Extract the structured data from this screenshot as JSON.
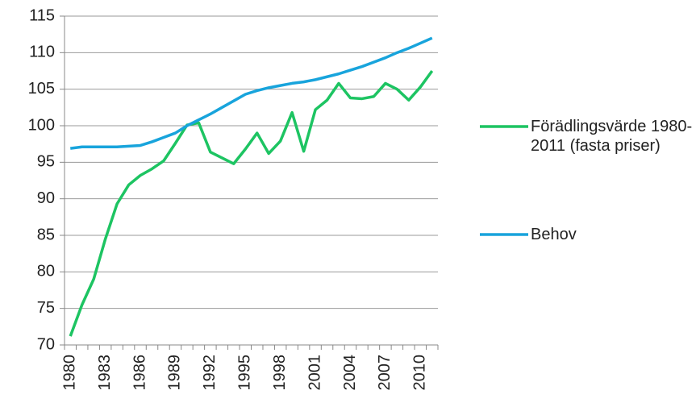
{
  "chart_data": {
    "type": "line",
    "categories": [
      "1980",
      null,
      null,
      "1983",
      null,
      null,
      "1986",
      null,
      null,
      "1989",
      null,
      null,
      "1992",
      null,
      null,
      "1995",
      null,
      null,
      "1998",
      null,
      null,
      "2001",
      null,
      null,
      "2004",
      null,
      null,
      "2007",
      null,
      null,
      "2010",
      null
    ],
    "series": [
      {
        "name": "Förädlingsvärde 1980-2011 (fasta priser)",
        "color": "#1dc462",
        "values": [
          71.2,
          75.5,
          79,
          84.5,
          89.3,
          91.9,
          93.2,
          94.1,
          95.2,
          97.6,
          100.1,
          100.4,
          96.4,
          95.6,
          94.8,
          96.8,
          99,
          96.2,
          97.9,
          101.8,
          96.5,
          102.2,
          103.5,
          105.8,
          103.8,
          103.7,
          104,
          105.8,
          105,
          103.5,
          105.3,
          107.5
        ]
      },
      {
        "name": "Behov",
        "color": "#18a4dc",
        "values": [
          96.9,
          97.1,
          97.1,
          97.1,
          97.1,
          97.2,
          97.3,
          97.8,
          98.4,
          99,
          100,
          100.8,
          101.6,
          102.5,
          103.4,
          104.3,
          104.8,
          105.2,
          105.5,
          105.8,
          106,
          106.3,
          106.7,
          107.1,
          107.6,
          108.1,
          108.7,
          109.3,
          110,
          110.6,
          111.3,
          112
        ]
      }
    ],
    "ylim": [
      70,
      115
    ],
    "yticks": [
      70,
      75,
      80,
      85,
      90,
      95,
      100,
      105,
      110,
      115
    ],
    "grid": true,
    "legend": "right"
  }
}
